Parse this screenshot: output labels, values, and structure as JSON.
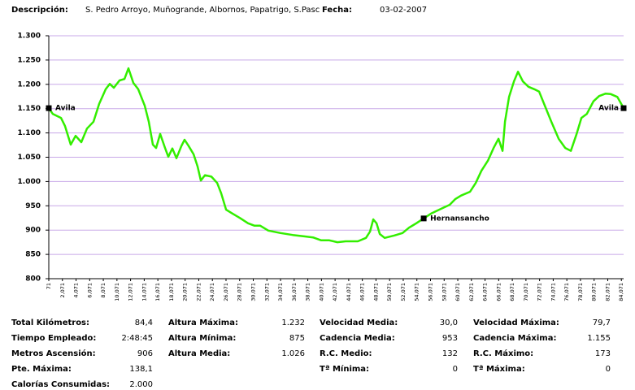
{
  "header": {
    "description_label": "Descripción:",
    "description": "S. Pedro Arroyo, Muñogrande, Albornos, Papatrigo, S.Pasc",
    "date_label": "Fecha:",
    "date": "03-02-2007"
  },
  "chart_data": {
    "type": "line",
    "x": [
      0.071,
      0.67,
      1.86,
      2.46,
      3.29,
      4.01,
      4.84,
      5.68,
      6.63,
      7.47,
      8.42,
      9.02,
      9.61,
      10.45,
      11.17,
      11.76,
      12.48,
      13.19,
      14.15,
      14.74,
      15.34,
      15.82,
      16.41,
      17.13,
      17.61,
      18.2,
      18.8,
      19.52,
      19.99,
      20.59,
      21.31,
      21.9,
      22.38,
      22.98,
      23.93,
      24.77,
      25.36,
      26.08,
      26.91,
      28.11,
      29.3,
      30.26,
      31.09,
      32.28,
      34.07,
      35.86,
      37.65,
      38.84,
      40.04,
      41.23,
      42.42,
      43.62,
      45.41,
      46.6,
      47.2,
      47.67,
      48.15,
      48.63,
      49.34,
      50.77,
      51.97,
      52.92,
      53.99,
      55.07,
      56.14,
      57.93,
      58.88,
      59.72,
      60.56,
      61.87,
      62.7,
      63.54,
      64.49,
      65.33,
      66.04,
      66.64,
      67.0,
      67.59,
      68.31,
      68.9,
      69.62,
      70.45,
      71.29,
      72.01,
      72.84,
      73.8,
      74.87,
      75.83,
      76.66,
      77.5,
      78.21,
      79.0,
      79.97,
      80.81,
      81.76,
      82.52,
      83.48,
      84.4
    ],
    "series": [
      {
        "color": "#33ee00",
        "values": [
          1151,
          1139,
          1131,
          1114,
          1076,
          1094,
          1081,
          1109,
          1123,
          1160,
          1190,
          1201,
          1193,
          1208,
          1211,
          1233,
          1203,
          1190,
          1156,
          1123,
          1076,
          1069,
          1098,
          1069,
          1051,
          1068,
          1048,
          1073,
          1086,
          1073,
          1056,
          1031,
          1002,
          1013,
          1010,
          997,
          976,
          942,
          935,
          925,
          914,
          909,
          909,
          899,
          894,
          890,
          887,
          885,
          879,
          879,
          875,
          877,
          877,
          884,
          897,
          922,
          914,
          892,
          884,
          889,
          894,
          905,
          914,
          924,
          934,
          946,
          952,
          964,
          971,
          979,
          997,
          1022,
          1043,
          1069,
          1088,
          1063,
          1123,
          1174,
          1206,
          1226,
          1206,
          1195,
          1190,
          1185,
          1156,
          1123,
          1088,
          1069,
          1063,
          1098,
          1131,
          1139,
          1165,
          1176,
          1181,
          1180,
          1174,
          1151
        ]
      }
    ],
    "xlim": [
      0.071,
      84.4
    ],
    "xticks": [
      {
        "value": 0.071,
        "label": "71"
      },
      {
        "value": 2.071,
        "label": "2,071"
      },
      {
        "value": 4.071,
        "label": "4,071"
      },
      {
        "value": 6.071,
        "label": "6,071"
      },
      {
        "value": 8.071,
        "label": "8,071"
      },
      {
        "value": 10.071,
        "label": "10,071"
      },
      {
        "value": 12.071,
        "label": "12,071"
      },
      {
        "value": 14.071,
        "label": "14,071"
      },
      {
        "value": 16.071,
        "label": "16,071"
      },
      {
        "value": 18.071,
        "label": "18,071"
      },
      {
        "value": 20.071,
        "label": "20,071"
      },
      {
        "value": 22.071,
        "label": "22,071"
      },
      {
        "value": 24.071,
        "label": "24,071"
      },
      {
        "value": 26.071,
        "label": "26,071"
      },
      {
        "value": 28.071,
        "label": "28,071"
      },
      {
        "value": 30.071,
        "label": "30,071"
      },
      {
        "value": 32.071,
        "label": "32,071"
      },
      {
        "value": 34.071,
        "label": "34,071"
      },
      {
        "value": 36.071,
        "label": "36,071"
      },
      {
        "value": 38.071,
        "label": "38,071"
      },
      {
        "value": 40.071,
        "label": "40,071"
      },
      {
        "value": 42.071,
        "label": "42,071"
      },
      {
        "value": 44.071,
        "label": "44,071"
      },
      {
        "value": 46.071,
        "label": "46,071"
      },
      {
        "value": 48.071,
        "label": "48,071"
      },
      {
        "value": 50.071,
        "label": "50,071"
      },
      {
        "value": 52.071,
        "label": "52,071"
      },
      {
        "value": 54.071,
        "label": "54,071"
      },
      {
        "value": 56.071,
        "label": "56,071"
      },
      {
        "value": 58.071,
        "label": "58,071"
      },
      {
        "value": 60.071,
        "label": "60,071"
      },
      {
        "value": 62.071,
        "label": "62,071"
      },
      {
        "value": 64.071,
        "label": "64,071"
      },
      {
        "value": 66.071,
        "label": "66,071"
      },
      {
        "value": 68.071,
        "label": "68,071"
      },
      {
        "value": 70.071,
        "label": "70,071"
      },
      {
        "value": 72.071,
        "label": "72,071"
      },
      {
        "value": 74.071,
        "label": "74,071"
      },
      {
        "value": 76.071,
        "label": "76,071"
      },
      {
        "value": 78.071,
        "label": "78,071"
      },
      {
        "value": 80.071,
        "label": "80,071"
      },
      {
        "value": 82.071,
        "label": "82,071"
      },
      {
        "value": 84.071,
        "label": "84,071"
      }
    ],
    "ylim": [
      800,
      1300
    ],
    "yticks": [
      800,
      850,
      900,
      950,
      {
        "value": 1000,
        "label": "1.000"
      },
      {
        "value": 1050,
        "label": "1.050"
      },
      {
        "value": 1100,
        "label": "1.100"
      },
      {
        "value": 1150,
        "label": "1.150"
      },
      {
        "value": 1200,
        "label": "1.200"
      },
      {
        "value": 1250,
        "label": "1.250"
      },
      {
        "value": 1300,
        "label": "1.300"
      }
    ],
    "grid": true,
    "grid_color": "#c8a8e8",
    "annotations": [
      {
        "text": "Avila",
        "x": 0.071,
        "y": 1151
      },
      {
        "text": "Hernansancho",
        "x": 55.07,
        "y": 924
      },
      {
        "text": "Avila",
        "x": 84.4,
        "y": 1151
      }
    ]
  },
  "stats": [
    [
      {
        "label": "Total Kilómetros:",
        "value": "84,4"
      },
      {
        "label": "Tiempo Empleado:",
        "value": "2:48:45"
      },
      {
        "label": "Metros Ascensión:",
        "value": "906"
      },
      {
        "label": "Pte. Máxima:",
        "value": "138,1"
      },
      {
        "label": "Calorías Consumidas:",
        "value": "2.000"
      }
    ],
    [
      {
        "label": "Altura Máxima:",
        "value": "1.232"
      },
      {
        "label": "Altura Mínima:",
        "value": "875"
      },
      {
        "label": "Altura Media:",
        "value": "1.026"
      }
    ],
    [
      {
        "label": "Velocidad Media:",
        "value": "30,0"
      },
      {
        "label": "Cadencia Media:",
        "value": "953"
      },
      {
        "label": "R.C. Medio:",
        "value": "132"
      },
      {
        "label": "Tª Mínima:",
        "value": "0"
      }
    ],
    [
      {
        "label": "Velocidad Máxima:",
        "value": "79,7"
      },
      {
        "label": "Cadencia Máxima:",
        "value": "1.155"
      },
      {
        "label": "R.C.  Máximo:",
        "value": "173"
      },
      {
        "label": "Tª Máxima:",
        "value": "0"
      }
    ]
  ]
}
